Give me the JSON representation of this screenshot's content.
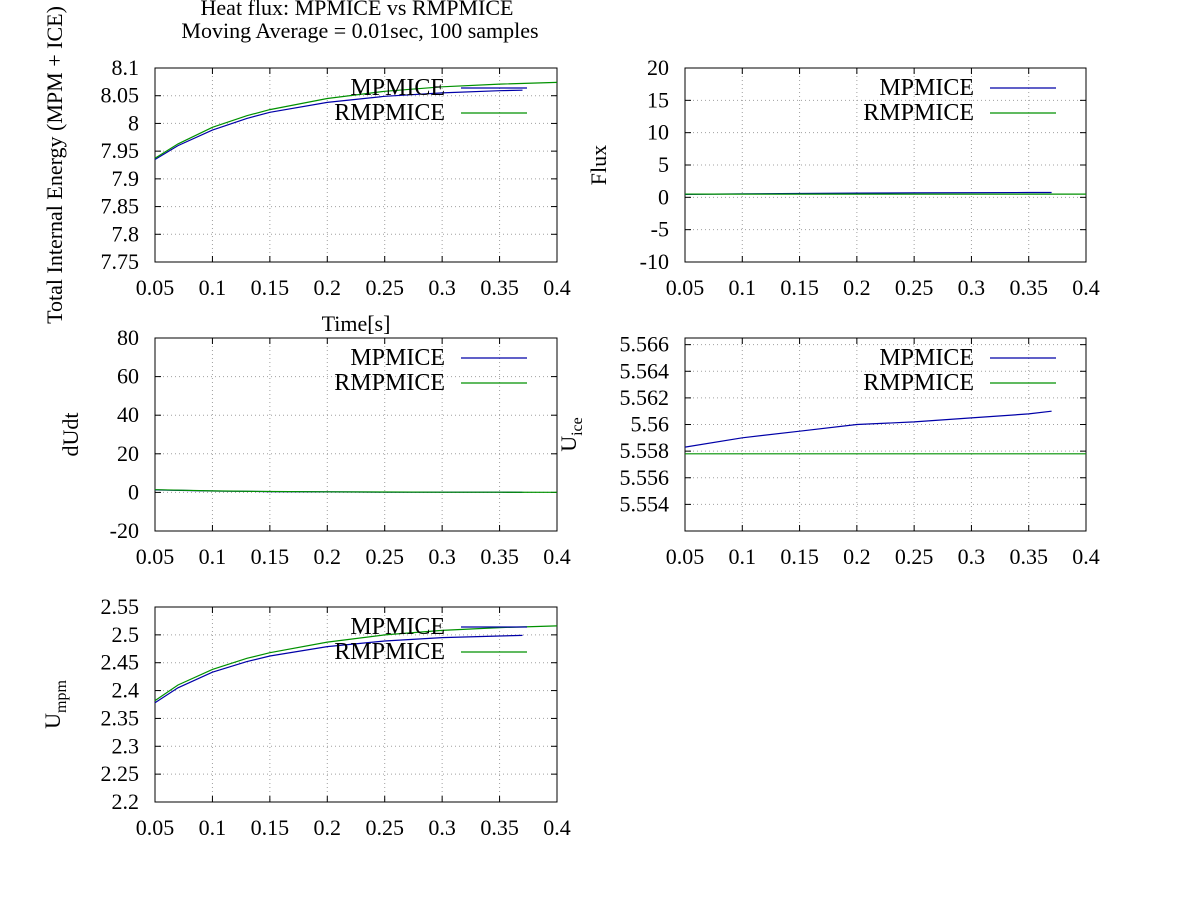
{
  "title_lines": [
    "Heat flux: MPMICE vs RMPMICE",
    "Moving Average = 0.01sec, 100 samples"
  ],
  "colors": {
    "MPMICE": "#0000a8",
    "RMPMICE": "#009100",
    "grid": "#a0a0a0"
  },
  "chart_data": [
    {
      "type": "line",
      "ylabel": "Total Internal Energy (MPM + ICE)",
      "xlabel": "Time[s]",
      "xlim": [
        0.05,
        0.4
      ],
      "ylim": [
        7.75,
        8.1
      ],
      "x_ticks": [
        "0.05",
        "0.1",
        "0.15",
        "0.2",
        "0.25",
        "0.3",
        "0.35",
        "0.4"
      ],
      "y_ticks": [
        "7.75",
        "7.8",
        "7.85",
        "7.9",
        "7.95",
        "8",
        "8.05",
        "8.1"
      ],
      "grid": true,
      "legend": "top-right",
      "series": [
        {
          "name": "MPMICE",
          "x": [
            0.05,
            0.07,
            0.1,
            0.13,
            0.15,
            0.2,
            0.25,
            0.3,
            0.35,
            0.37
          ],
          "values": [
            7.935,
            7.96,
            7.988,
            8.009,
            8.02,
            8.038,
            8.049,
            8.055,
            8.059,
            8.06
          ]
        },
        {
          "name": "RMPMICE",
          "x": [
            0.05,
            0.07,
            0.1,
            0.13,
            0.15,
            0.2,
            0.25,
            0.3,
            0.35,
            0.4
          ],
          "values": [
            7.937,
            7.963,
            7.993,
            8.014,
            8.025,
            8.045,
            8.058,
            8.066,
            8.071,
            8.074
          ]
        }
      ]
    },
    {
      "type": "line",
      "ylabel": "Flux",
      "xlabel": "",
      "xlim": [
        0.05,
        0.4
      ],
      "ylim": [
        -10,
        20
      ],
      "x_ticks": [
        "0.05",
        "0.1",
        "0.15",
        "0.2",
        "0.25",
        "0.3",
        "0.35",
        "0.4"
      ],
      "y_ticks": [
        "-10",
        "-5",
        "0",
        "5",
        "10",
        "15",
        "20"
      ],
      "grid": true,
      "legend": "top-right",
      "series": [
        {
          "name": "MPMICE",
          "x": [
            0.05,
            0.1,
            0.15,
            0.2,
            0.25,
            0.3,
            0.35,
            0.37
          ],
          "values": [
            0.45,
            0.55,
            0.6,
            0.65,
            0.7,
            0.72,
            0.74,
            0.75
          ]
        },
        {
          "name": "RMPMICE",
          "x": [
            0.05,
            0.1,
            0.2,
            0.3,
            0.4
          ],
          "values": [
            0.5,
            0.5,
            0.5,
            0.5,
            0.5
          ]
        }
      ]
    },
    {
      "type": "line",
      "ylabel": "dUdt",
      "xlabel": "",
      "xlim": [
        0.05,
        0.4
      ],
      "ylim": [
        -20,
        80
      ],
      "x_ticks": [
        "0.05",
        "0.1",
        "0.15",
        "0.2",
        "0.25",
        "0.3",
        "0.35",
        "0.4"
      ],
      "y_ticks": [
        "-20",
        "0",
        "20",
        "40",
        "60",
        "80"
      ],
      "grid": true,
      "legend": "top-right",
      "series": [
        {
          "name": "MPMICE",
          "x": [
            0.05,
            0.1,
            0.15,
            0.2,
            0.25,
            0.3,
            0.35,
            0.37
          ],
          "values": [
            1.3,
            0.7,
            0.4,
            0.25,
            0.15,
            0.1,
            0.08,
            0.07
          ]
        },
        {
          "name": "RMPMICE",
          "x": [
            0.05,
            0.1,
            0.15,
            0.2,
            0.25,
            0.3,
            0.35,
            0.4
          ],
          "values": [
            1.4,
            0.8,
            0.45,
            0.3,
            0.2,
            0.12,
            0.08,
            0.06
          ]
        }
      ]
    },
    {
      "type": "line",
      "ylabel": "U",
      "ylabel_sub": "ice",
      "xlabel": "",
      "xlim": [
        0.05,
        0.4
      ],
      "ylim": [
        5.552,
        5.5665
      ],
      "x_ticks": [
        "0.05",
        "0.1",
        "0.15",
        "0.2",
        "0.25",
        "0.3",
        "0.35",
        "0.4"
      ],
      "y_ticks": [
        "5.554",
        "5.556",
        "5.558",
        "5.56",
        "5.562",
        "5.564",
        "5.566"
      ],
      "grid": true,
      "legend": "top-right",
      "series": [
        {
          "name": "MPMICE",
          "x": [
            0.05,
            0.1,
            0.15,
            0.2,
            0.25,
            0.3,
            0.35,
            0.37
          ],
          "values": [
            5.5583,
            5.559,
            5.5595,
            5.56,
            5.5602,
            5.5605,
            5.5608,
            5.561
          ]
        },
        {
          "name": "RMPMICE",
          "x": [
            0.05,
            0.1,
            0.2,
            0.3,
            0.4
          ],
          "values": [
            5.5578,
            5.5578,
            5.5578,
            5.5578,
            5.5578
          ]
        }
      ]
    },
    {
      "type": "line",
      "ylabel": "U",
      "ylabel_sub": "mpm",
      "xlabel": "",
      "xlim": [
        0.05,
        0.4
      ],
      "ylim": [
        2.2,
        2.55
      ],
      "x_ticks": [
        "0.05",
        "0.1",
        "0.15",
        "0.2",
        "0.25",
        "0.3",
        "0.35",
        "0.4"
      ],
      "y_ticks": [
        "2.2",
        "2.25",
        "2.3",
        "2.35",
        "2.4",
        "2.45",
        "2.5",
        "2.55"
      ],
      "grid": true,
      "legend": "top-right",
      "series": [
        {
          "name": "MPMICE",
          "x": [
            0.05,
            0.07,
            0.1,
            0.13,
            0.15,
            0.2,
            0.25,
            0.3,
            0.35,
            0.37
          ],
          "values": [
            2.378,
            2.405,
            2.433,
            2.452,
            2.462,
            2.479,
            2.489,
            2.495,
            2.498,
            2.499
          ]
        },
        {
          "name": "RMPMICE",
          "x": [
            0.05,
            0.07,
            0.1,
            0.13,
            0.15,
            0.2,
            0.25,
            0.3,
            0.35,
            0.4
          ],
          "values": [
            2.382,
            2.41,
            2.438,
            2.458,
            2.468,
            2.487,
            2.5,
            2.508,
            2.513,
            2.516
          ]
        }
      ]
    }
  ]
}
